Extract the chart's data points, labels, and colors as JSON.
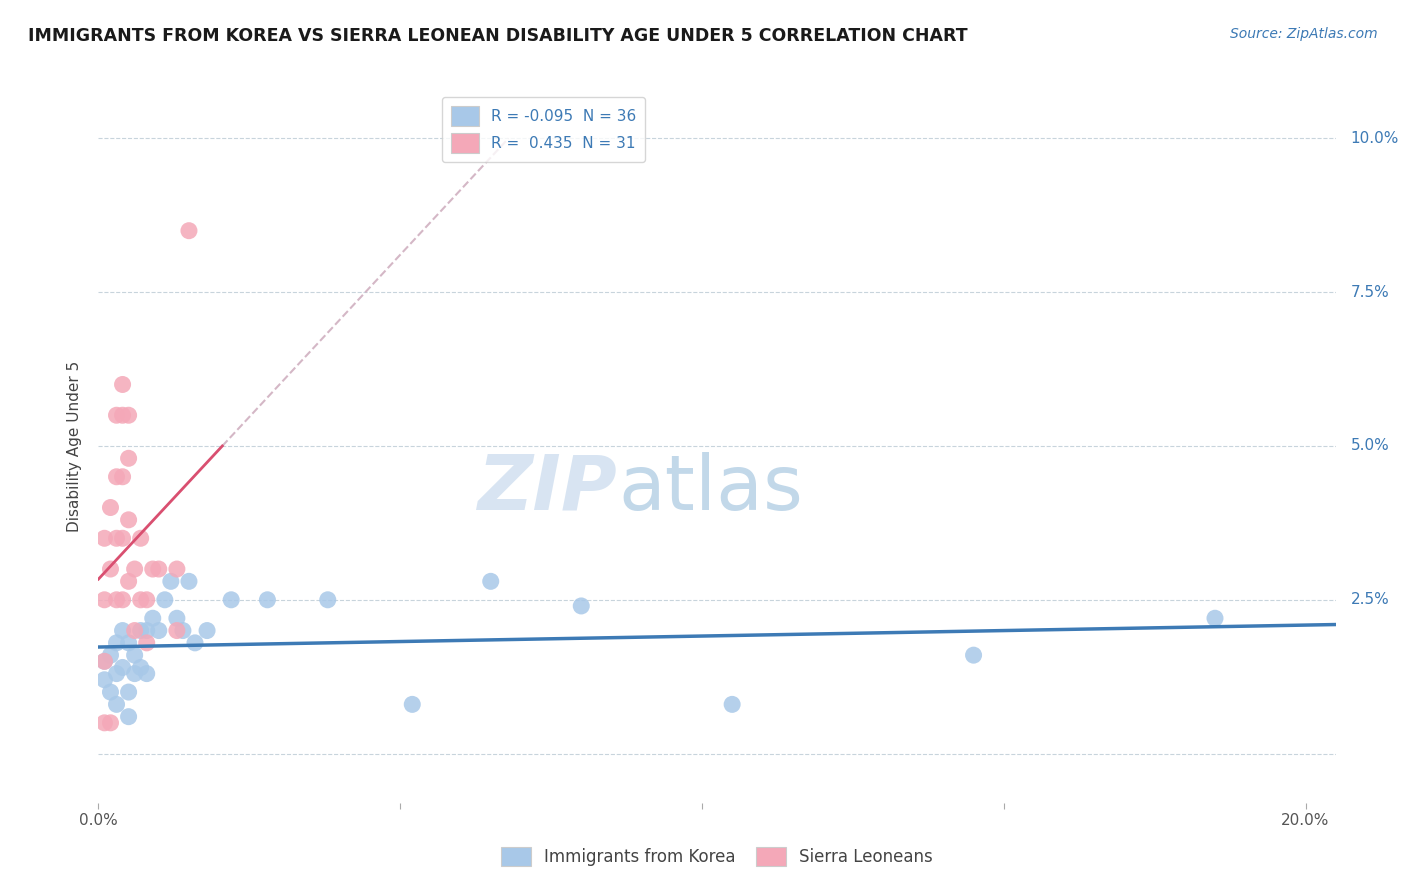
{
  "title": "IMMIGRANTS FROM KOREA VS SIERRA LEONEAN DISABILITY AGE UNDER 5 CORRELATION CHART",
  "source": "Source: ZipAtlas.com",
  "ylabel": "Disability Age Under 5",
  "xlim": [
    0.0,
    0.205
  ],
  "ylim": [
    -0.008,
    0.108
  ],
  "yticks": [
    0.0,
    0.025,
    0.05,
    0.075,
    0.1
  ],
  "ytick_labels": [
    "",
    "2.5%",
    "5.0%",
    "7.5%",
    "10.0%"
  ],
  "xticks": [
    0.0,
    0.05,
    0.1,
    0.15,
    0.2
  ],
  "xtick_labels": [
    "0.0%",
    "",
    "",
    "",
    "20.0%"
  ],
  "korea_R": -0.095,
  "korea_N": 36,
  "sierra_R": 0.435,
  "sierra_N": 31,
  "korea_color": "#a8c8e8",
  "sierra_color": "#f4a8b8",
  "korea_line_color": "#3d7ab5",
  "sierra_line_color": "#d94f70",
  "dashed_line_color": "#d0b0c0",
  "background_color": "#ffffff",
  "grid_color": "#c8d4dc",
  "watermark_zip": "ZIP",
  "watermark_atlas": "atlas",
  "korea_x": [
    0.001,
    0.001,
    0.002,
    0.002,
    0.003,
    0.003,
    0.003,
    0.004,
    0.004,
    0.005,
    0.005,
    0.005,
    0.006,
    0.006,
    0.007,
    0.007,
    0.008,
    0.008,
    0.009,
    0.01,
    0.011,
    0.012,
    0.013,
    0.014,
    0.015,
    0.016,
    0.018,
    0.022,
    0.028,
    0.038,
    0.052,
    0.065,
    0.08,
    0.105,
    0.145,
    0.185
  ],
  "korea_y": [
    0.015,
    0.012,
    0.016,
    0.01,
    0.018,
    0.013,
    0.008,
    0.02,
    0.014,
    0.018,
    0.01,
    0.006,
    0.016,
    0.013,
    0.02,
    0.014,
    0.02,
    0.013,
    0.022,
    0.02,
    0.025,
    0.028,
    0.022,
    0.02,
    0.028,
    0.018,
    0.02,
    0.025,
    0.025,
    0.025,
    0.008,
    0.028,
    0.024,
    0.008,
    0.016,
    0.022
  ],
  "sierra_x": [
    0.001,
    0.001,
    0.001,
    0.001,
    0.002,
    0.002,
    0.002,
    0.003,
    0.003,
    0.003,
    0.003,
    0.004,
    0.004,
    0.004,
    0.004,
    0.004,
    0.005,
    0.005,
    0.005,
    0.005,
    0.006,
    0.006,
    0.007,
    0.007,
    0.008,
    0.008,
    0.009,
    0.01,
    0.013,
    0.013,
    0.015
  ],
  "sierra_y": [
    0.035,
    0.025,
    0.015,
    0.005,
    0.04,
    0.03,
    0.005,
    0.055,
    0.045,
    0.035,
    0.025,
    0.06,
    0.055,
    0.045,
    0.035,
    0.025,
    0.055,
    0.048,
    0.038,
    0.028,
    0.03,
    0.02,
    0.035,
    0.025,
    0.025,
    0.018,
    0.03,
    0.03,
    0.03,
    0.02,
    0.085
  ]
}
